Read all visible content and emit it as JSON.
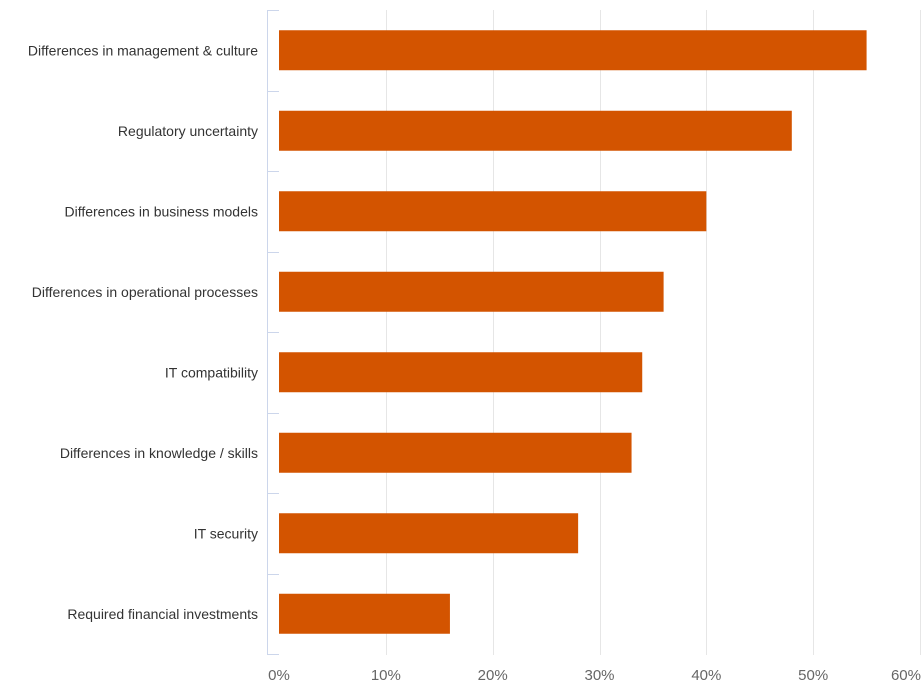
{
  "chart_data": {
    "type": "bar",
    "orientation": "horizontal",
    "categories": [
      "Differences in management & culture",
      "Regulatory uncertainty",
      "Differences in business models",
      "Differences in operational processes",
      "IT compatibility",
      "Differences in knowledge / skills",
      "IT security",
      "Required financial investments"
    ],
    "values": [
      55,
      48,
      40,
      36,
      34,
      33,
      28,
      16
    ],
    "value_unit": "%",
    "xlim": [
      0,
      60
    ],
    "x_ticks": [
      0,
      10,
      20,
      30,
      40,
      50,
      60
    ],
    "x_tick_labels": [
      "0%",
      "10%",
      "20%",
      "30%",
      "40%",
      "50%",
      "60%"
    ],
    "title": "",
    "xlabel": "",
    "ylabel": "",
    "grid": true,
    "legend": "none",
    "bar_color": "#d35400"
  }
}
